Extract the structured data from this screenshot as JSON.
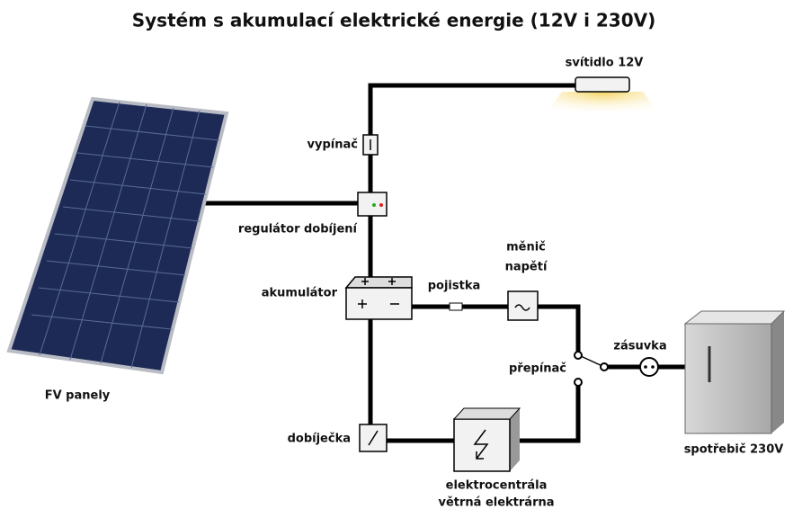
{
  "title": "Systém s akumulací elektrické energie (12V i 230V)",
  "labels": {
    "lamp": "svítidlo 12V",
    "switch": "vypínač",
    "regulator": "regulátor dobíjení",
    "battery": "akumulátor",
    "fuse": "pojistka",
    "inverter": [
      "měnič",
      "napětí"
    ],
    "selector": "přepínač",
    "socket": "zásuvka",
    "panels": "FV panely",
    "charger": "dobíječka",
    "generator": [
      "elektrocentrála",
      "větrná elektrárna"
    ],
    "appliance": "spotřebič 230V"
  }
}
